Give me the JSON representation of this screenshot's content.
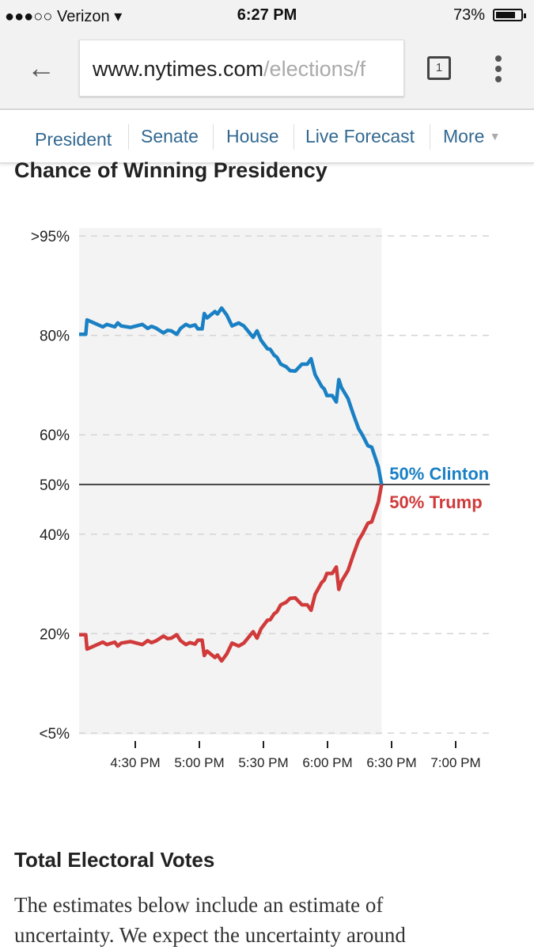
{
  "status_bar": {
    "signal": "●●●○○",
    "carrier": "Verizon",
    "time": "6:27 PM",
    "battery": "73%",
    "battery_level": 0.73
  },
  "browser": {
    "url_host": "www.nytimes.com",
    "url_path": "/elections/f",
    "tab_count": "1"
  },
  "nav": {
    "items": [
      "President",
      "Senate",
      "House",
      "Live Forecast",
      "More"
    ],
    "more_arrow": "▼"
  },
  "title": "Chance of Winning Presidency",
  "chart_data": {
    "type": "line",
    "title": "Chance of Winning Presidency",
    "ylim": [
      0,
      100
    ],
    "y_ticks": [
      100,
      80,
      60,
      50,
      40,
      20,
      0
    ],
    "y_tick_labels": [
      ">95%",
      "80%",
      "60%",
      "50%",
      "40%",
      "20%",
      "<5%"
    ],
    "x_range": [
      "16:03:42",
      "19:16:00"
    ],
    "x_ticks": [
      "16:30",
      "17:00",
      "17:30",
      "18:00",
      "18:30",
      "19:00"
    ],
    "x_tick_labels": [
      "4:30 PM",
      "5:00 PM",
      "5:30 PM",
      "6:00 PM",
      "6:30 PM",
      "7:00 PM"
    ],
    "grid": true,
    "reference_line": 50,
    "colors": {
      "Clinton": "#1a80c4",
      "Trump": "#d03a3a",
      "shade": "#f3f3f3"
    },
    "x": [
      "16:03:42",
      "16:06:48",
      "16:07:24",
      "16:14:48",
      "16:16:42",
      "16:20:24",
      "16:21:48",
      "16:23:24",
      "16:27:48",
      "16:33:18",
      "16:35:48",
      "16:37:36",
      "16:39:30",
      "16:43:12",
      "16:45:06",
      "16:46:54",
      "16:49:24",
      "16:51:12",
      "16:53:42",
      "16:55:30",
      "16:58:00",
      "16:59:18",
      "17:01:18",
      "17:02:18",
      "17:03:36",
      "17:07:18",
      "17:08:30",
      "17:10:24",
      "17:12:48",
      "17:15:18",
      "17:18:24",
      "17:20:48",
      "17:25:12",
      "17:27:00",
      "17:28:54",
      "17:31:54",
      "17:33:12",
      "17:35:00",
      "17:36:18",
      "17:38:06",
      "17:40:36",
      "17:42:30",
      "17:44:54",
      "17:48:00",
      "17:50:30",
      "17:52:18",
      "17:54:12",
      "17:57:18",
      "17:58:30",
      "17:59:42",
      "18:02:12",
      "18:04:06",
      "18:05:18",
      "18:06:30",
      "18:09:36",
      "18:12:06",
      "18:14:36",
      "18:16:24",
      "18:18:54",
      "18:20:42",
      "18:22:36",
      "18:23:48",
      "18:25:18"
    ],
    "series": [
      {
        "name": "Clinton",
        "end_label": "50% Clinton",
        "values": [
          80.2,
          80.2,
          83.1,
          81.7,
          82.2,
          81.7,
          82.5,
          81.9,
          81.6,
          82.2,
          81.4,
          81.8,
          81.5,
          80.5,
          81.0,
          80.9,
          80.2,
          81.4,
          82.2,
          81.8,
          82.1,
          81.3,
          81.3,
          84.4,
          83.5,
          84.8,
          84.3,
          85.5,
          84.1,
          81.9,
          82.5,
          81.9,
          79.6,
          80.9,
          79.0,
          77.3,
          77.2,
          76.0,
          75.6,
          74.2,
          73.7,
          72.9,
          72.8,
          74.2,
          74.2,
          75.3,
          72.1,
          69.7,
          69.2,
          67.9,
          67.9,
          66.6,
          71.1,
          69.5,
          67.3,
          64.1,
          61.2,
          59.9,
          57.8,
          57.5,
          55.1,
          53.5,
          50
        ]
      },
      {
        "name": "Trump",
        "end_label": "50% Trump",
        "values": [
          19.8,
          19.8,
          16.9,
          18.3,
          17.8,
          18.3,
          17.5,
          18.1,
          18.4,
          17.8,
          18.6,
          18.2,
          18.5,
          19.5,
          19.0,
          19.1,
          19.8,
          18.6,
          17.8,
          18.2,
          17.9,
          18.7,
          18.7,
          15.6,
          16.5,
          15.2,
          15.7,
          14.5,
          15.9,
          18.1,
          17.5,
          18.1,
          20.4,
          19.1,
          21.0,
          22.7,
          22.8,
          24.0,
          24.4,
          25.8,
          26.3,
          27.1,
          27.2,
          25.8,
          25.8,
          24.7,
          27.9,
          30.3,
          30.8,
          32.1,
          32.1,
          33.4,
          28.9,
          30.5,
          32.7,
          35.9,
          38.8,
          40.1,
          42.2,
          42.5,
          44.9,
          46.5,
          50
        ]
      }
    ]
  },
  "section2": {
    "heading": "Total Electoral Votes",
    "lines": [
      "The estimates below include an estimate of",
      "uncertainty. We expect the uncertainty around"
    ]
  }
}
